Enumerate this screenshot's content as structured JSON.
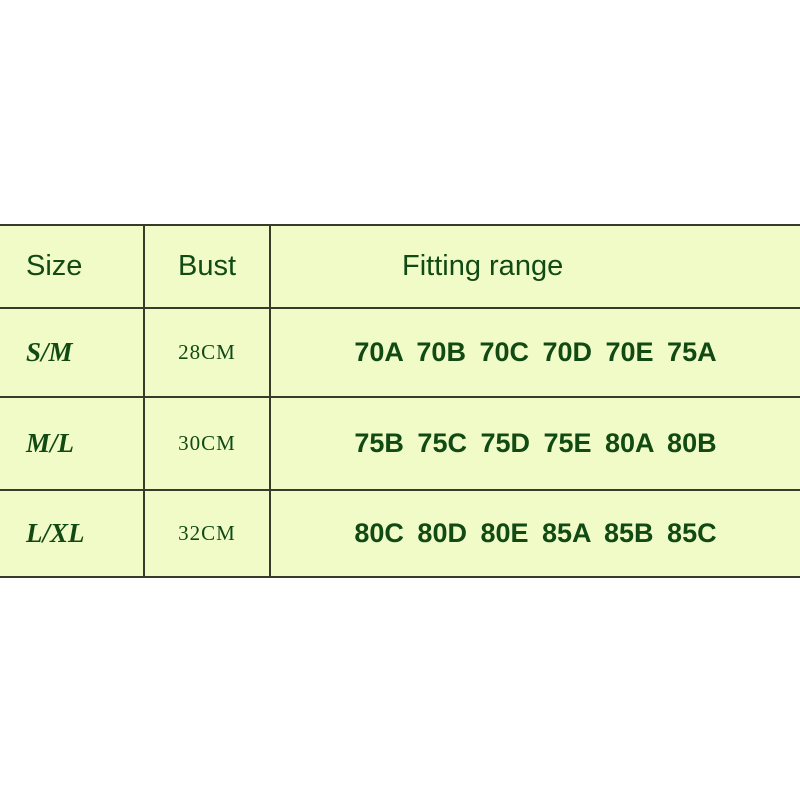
{
  "table": {
    "headers": [
      "Size",
      "Bust",
      "Fitting range"
    ],
    "rows": [
      {
        "size": "S/M",
        "bust": "28CM",
        "fitting": "70A 70B 70C 70D 70E 75A"
      },
      {
        "size": "M/L",
        "bust": "30CM",
        "fitting": "75B 75C 75D 75E 80A 80B"
      },
      {
        "size": "L/XL",
        "bust": "32CM",
        "fitting": "80C 80D 80E 85A 85B 85C"
      }
    ]
  },
  "colors": {
    "background": "#f1fbc8",
    "text": "#124a14",
    "border": "#3a3a2a"
  }
}
